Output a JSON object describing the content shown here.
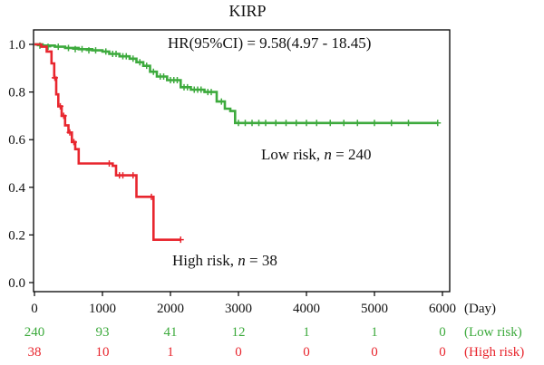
{
  "chart_data": {
    "type": "line",
    "title": "KIRP",
    "hr_text": "HR(95%CI) = 9.58(4.97 - 18.45)",
    "xlabel": "(Day)",
    "ylabel": "",
    "xlim": [
      0,
      6000
    ],
    "ylim": [
      0.0,
      1.0
    ],
    "x_ticks": [
      0,
      1000,
      2000,
      3000,
      4000,
      5000,
      6000
    ],
    "y_ticks": [
      "0.0",
      "0.2",
      "0.4",
      "0.6",
      "0.8",
      "1.0"
    ],
    "grid": false,
    "colors": {
      "low": "#3daa3d",
      "high": "#e8262e"
    },
    "series": [
      {
        "key": "low",
        "label_prefix": "Low risk, ",
        "label_n": "n",
        "label_suffix": " = 240",
        "steps": [
          [
            0,
            1.0
          ],
          [
            120,
            0.995
          ],
          [
            300,
            0.99
          ],
          [
            450,
            0.985
          ],
          [
            650,
            0.98
          ],
          [
            850,
            0.975
          ],
          [
            1000,
            0.97
          ],
          [
            1100,
            0.96
          ],
          [
            1250,
            0.95
          ],
          [
            1400,
            0.94
          ],
          [
            1500,
            0.925
          ],
          [
            1600,
            0.91
          ],
          [
            1700,
            0.885
          ],
          [
            1800,
            0.865
          ],
          [
            1950,
            0.85
          ],
          [
            2150,
            0.82
          ],
          [
            2300,
            0.81
          ],
          [
            2500,
            0.8
          ],
          [
            2680,
            0.76
          ],
          [
            2800,
            0.73
          ],
          [
            2880,
            0.72
          ],
          [
            2950,
            0.67
          ],
          [
            5930,
            0.67
          ]
        ],
        "censors": [
          [
            80,
            0.995
          ],
          [
            200,
            0.99
          ],
          [
            350,
            0.99
          ],
          [
            500,
            0.985
          ],
          [
            600,
            0.98
          ],
          [
            700,
            0.98
          ],
          [
            800,
            0.975
          ],
          [
            900,
            0.975
          ],
          [
            1050,
            0.97
          ],
          [
            1150,
            0.96
          ],
          [
            1200,
            0.96
          ],
          [
            1300,
            0.95
          ],
          [
            1350,
            0.95
          ],
          [
            1450,
            0.94
          ],
          [
            1550,
            0.925
          ],
          [
            1650,
            0.91
          ],
          [
            1750,
            0.885
          ],
          [
            1850,
            0.865
          ],
          [
            1900,
            0.865
          ],
          [
            2000,
            0.85
          ],
          [
            2050,
            0.85
          ],
          [
            2100,
            0.85
          ],
          [
            2200,
            0.82
          ],
          [
            2250,
            0.82
          ],
          [
            2350,
            0.81
          ],
          [
            2400,
            0.81
          ],
          [
            2450,
            0.81
          ],
          [
            2550,
            0.8
          ],
          [
            2600,
            0.8
          ],
          [
            2750,
            0.76
          ],
          [
            3000,
            0.67
          ],
          [
            3100,
            0.67
          ],
          [
            3200,
            0.67
          ],
          [
            3300,
            0.67
          ],
          [
            3400,
            0.67
          ],
          [
            3550,
            0.67
          ],
          [
            3700,
            0.67
          ],
          [
            3850,
            0.67
          ],
          [
            4000,
            0.67
          ],
          [
            4150,
            0.67
          ],
          [
            4350,
            0.67
          ],
          [
            4550,
            0.67
          ],
          [
            4750,
            0.67
          ],
          [
            5000,
            0.67
          ],
          [
            5250,
            0.67
          ],
          [
            5500,
            0.67
          ],
          [
            5930,
            0.67
          ]
        ]
      },
      {
        "key": "high",
        "label_prefix": "High risk, ",
        "label_n": "n",
        "label_suffix": " = 38",
        "steps": [
          [
            0,
            1.0
          ],
          [
            100,
            0.99
          ],
          [
            180,
            0.97
          ],
          [
            250,
            0.92
          ],
          [
            290,
            0.86
          ],
          [
            320,
            0.79
          ],
          [
            350,
            0.74
          ],
          [
            400,
            0.7
          ],
          [
            450,
            0.66
          ],
          [
            500,
            0.63
          ],
          [
            550,
            0.59
          ],
          [
            600,
            0.56
          ],
          [
            650,
            0.5
          ],
          [
            1150,
            0.49
          ],
          [
            1200,
            0.45
          ],
          [
            1500,
            0.36
          ],
          [
            1750,
            0.18
          ],
          [
            2150,
            0.18
          ]
        ],
        "censors": [
          [
            300,
            0.86
          ],
          [
            380,
            0.74
          ],
          [
            430,
            0.7
          ],
          [
            520,
            0.63
          ],
          [
            580,
            0.59
          ],
          [
            1100,
            0.5
          ],
          [
            1250,
            0.45
          ],
          [
            1300,
            0.45
          ],
          [
            1450,
            0.45
          ],
          [
            1720,
            0.36
          ],
          [
            2150,
            0.18
          ]
        ]
      }
    ],
    "risk_table": {
      "times": [
        "0",
        "1000",
        "2000",
        "3000",
        "4000",
        "5000",
        "6000"
      ],
      "rows": [
        {
          "key": "low",
          "label": "(Low risk)",
          "values": [
            "240",
            "93",
            "41",
            "12",
            "1",
            "1",
            "0"
          ]
        },
        {
          "key": "high",
          "label": "(High risk)",
          "values": [
            "38",
            "10",
            "1",
            "0",
            "0",
            "0",
            "0"
          ]
        }
      ]
    }
  }
}
